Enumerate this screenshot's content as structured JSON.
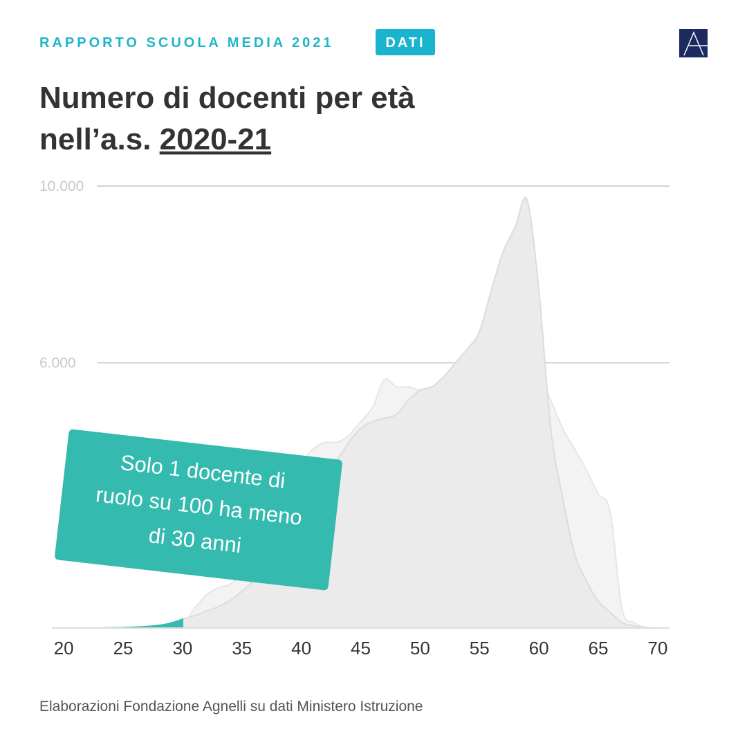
{
  "header": {
    "kicker": "RAPPORTO SCUOLA MEDIA 2021",
    "badge": "DATI"
  },
  "chart_data": {
    "type": "area",
    "title": [
      "Numero di docenti per età",
      "nell’a.s.",
      "2020-21"
    ],
    "annotation": [
      "Solo 1 docente di",
      "ruolo su 100 ha meno",
      "di 30 anni"
    ],
    "source": "Elaborazioni Fondazione Agnelli su dati Ministero Istruzione",
    "x": [
      19,
      20,
      21,
      22,
      23,
      24,
      25,
      26,
      27,
      28,
      29,
      30,
      31,
      32,
      33,
      34,
      35,
      36,
      37,
      38,
      39,
      40,
      41,
      42,
      43,
      44,
      45,
      46,
      47,
      48,
      49,
      50,
      51,
      52,
      53,
      54,
      55,
      56,
      57,
      58,
      59,
      60,
      61,
      62,
      63,
      64,
      65,
      66,
      67,
      68,
      69,
      70,
      71
    ],
    "series": [
      {
        "color": "#ebebeb",
        "values": [
          0,
          0,
          0,
          0,
          0,
          5,
          10,
          20,
          35,
          60,
          110,
          200,
          280,
          380,
          480,
          620,
          830,
          1070,
          1380,
          1770,
          2160,
          2630,
          3070,
          3580,
          3810,
          4200,
          4520,
          4670,
          4750,
          4830,
          5150,
          5380,
          5460,
          5690,
          6010,
          6320,
          6710,
          7650,
          8520,
          9070,
          9690,
          7650,
          4520,
          2950,
          1690,
          1070,
          600,
          360,
          125,
          50,
          15,
          0,
          0
        ]
      },
      {
        "color": "#f3f3f3",
        "values": [
          0,
          0,
          0,
          0,
          0,
          0,
          0,
          0,
          0,
          0,
          0,
          60,
          440,
          750,
          910,
          990,
          1220,
          1540,
          2010,
          2630,
          3260,
          3730,
          4050,
          4200,
          4200,
          4360,
          4670,
          4990,
          5620,
          5460,
          5460,
          5380,
          5460,
          5460,
          5690,
          5850,
          5930,
          5930,
          5620,
          5690,
          5770,
          5690,
          5150,
          4520,
          4050,
          3580,
          3030,
          2630,
          440,
          125,
          10,
          0,
          0
        ]
      }
    ],
    "highlight": {
      "series": 0,
      "xlim": [
        19,
        30
      ],
      "color": "#34baae"
    },
    "xlim": [
      19,
      71
    ],
    "xticks": [
      20,
      25,
      30,
      35,
      40,
      45,
      50,
      55,
      60,
      65,
      70
    ],
    "ylim": [
      0,
      10000
    ],
    "yticks": [
      {
        "value": 6000,
        "label": "6.000"
      },
      {
        "value": 10000,
        "label": "10.000"
      }
    ],
    "grid": true
  }
}
